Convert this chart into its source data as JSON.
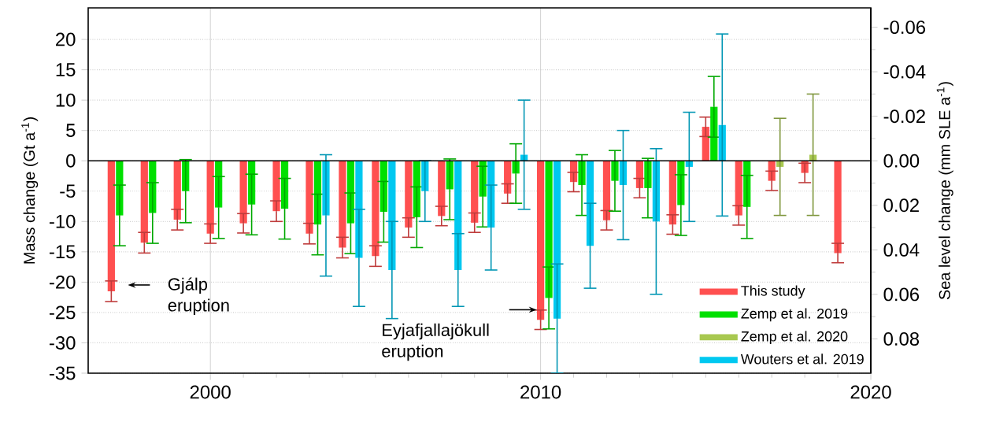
{
  "chart_data": {
    "type": "bar",
    "ylabel": "Mass change (Gt a$^{-1}$)",
    "y2label": "Sea level change (mm SLE a$^{-1}$)",
    "x": [
      1997,
      1998,
      1999,
      2000,
      2001,
      2002,
      2003,
      2004,
      2005,
      2006,
      2007,
      2008,
      2009,
      2010,
      2011,
      2012,
      2013,
      2014,
      2015,
      2016,
      2017,
      2018,
      2019
    ],
    "series": [
      {
        "name": "This study",
        "color": "#ff5050",
        "values": [
          -21.5,
          -13.5,
          -9.7,
          -12,
          -10.3,
          -8.3,
          -12,
          -14.3,
          -15.7,
          -11,
          -9.1,
          -10.2,
          -5.4,
          -26.2,
          -3.5,
          -9.8,
          -4.5,
          -10.5,
          5.6,
          -9,
          -3.3,
          -2,
          -15.2
        ],
        "errors": [
          1.7,
          1.7,
          1.7,
          1.6,
          1.6,
          1.7,
          1.7,
          1.7,
          1.7,
          1.6,
          1.6,
          1.6,
          1.6,
          1.6,
          1.6,
          1.6,
          1.6,
          1.6,
          1.6,
          1.6,
          1.6,
          1.6,
          1.6
        ]
      },
      {
        "name": "Zemp et al. 2019",
        "color": "#00e000",
        "values": [
          -9,
          -8.6,
          -5,
          -7.7,
          -7.2,
          -7.9,
          -10.5,
          -10.3,
          -8.4,
          -9.3,
          -4.7,
          -5.9,
          -2.1,
          -22.6,
          -4,
          -3.3,
          -4.5,
          -7.3,
          8.9,
          -7.6,
          null,
          null,
          null
        ],
        "errors": [
          5,
          5,
          5.2,
          5.1,
          5,
          5,
          5,
          5,
          5,
          5,
          5,
          5,
          4.9,
          5.1,
          5,
          5,
          4.9,
          5,
          5,
          5.2,
          null,
          null,
          null
        ]
      },
      {
        "name": "Zemp et al. 2020",
        "color": "#a8c850",
        "values": [
          null,
          null,
          null,
          null,
          null,
          null,
          null,
          null,
          null,
          null,
          null,
          null,
          null,
          null,
          null,
          null,
          null,
          null,
          null,
          null,
          -1,
          1,
          null
        ],
        "errors": [
          null,
          null,
          null,
          null,
          null,
          null,
          null,
          null,
          null,
          null,
          null,
          null,
          null,
          null,
          null,
          null,
          null,
          null,
          null,
          null,
          8,
          10,
          null
        ]
      },
      {
        "name": "Wouters et al. 2019",
        "color": "#00c8f0",
        "values": [
          null,
          null,
          null,
          null,
          null,
          null,
          -9,
          -16,
          -18,
          -5,
          -18,
          -11,
          1,
          -26,
          -14,
          -4,
          -10,
          -1,
          5.9,
          null,
          null,
          null,
          null
        ],
        "errors": [
          null,
          null,
          null,
          null,
          null,
          null,
          10,
          8,
          8,
          5,
          6,
          7,
          9,
          9,
          7,
          9,
          12,
          9,
          15,
          null,
          null,
          null,
          null
        ]
      }
    ],
    "xlim": [
      1996.3,
      2020
    ],
    "xticks": [
      2000,
      2010,
      2020
    ],
    "ylim": [
      -35,
      25.2
    ],
    "yticks": [
      -35,
      -30,
      -25,
      -20,
      -15,
      -10,
      -5,
      0,
      5,
      10,
      15,
      20
    ],
    "y2lim": [
      0.0954,
      -0.0687
    ],
    "y2ticks": [
      -0.06,
      -0.04,
      -0.02,
      {
        "value": 0,
        "label": "0.00"
      },
      0.02,
      0.04,
      0.06,
      0.08
    ],
    "ref_lines": [
      {
        "axis": "y",
        "value": 0
      }
    ],
    "annotations": [
      "Gjálp eruption",
      "Eyjafjallajökull eruption"
    ],
    "grid": true,
    "legend": "bottom right"
  }
}
